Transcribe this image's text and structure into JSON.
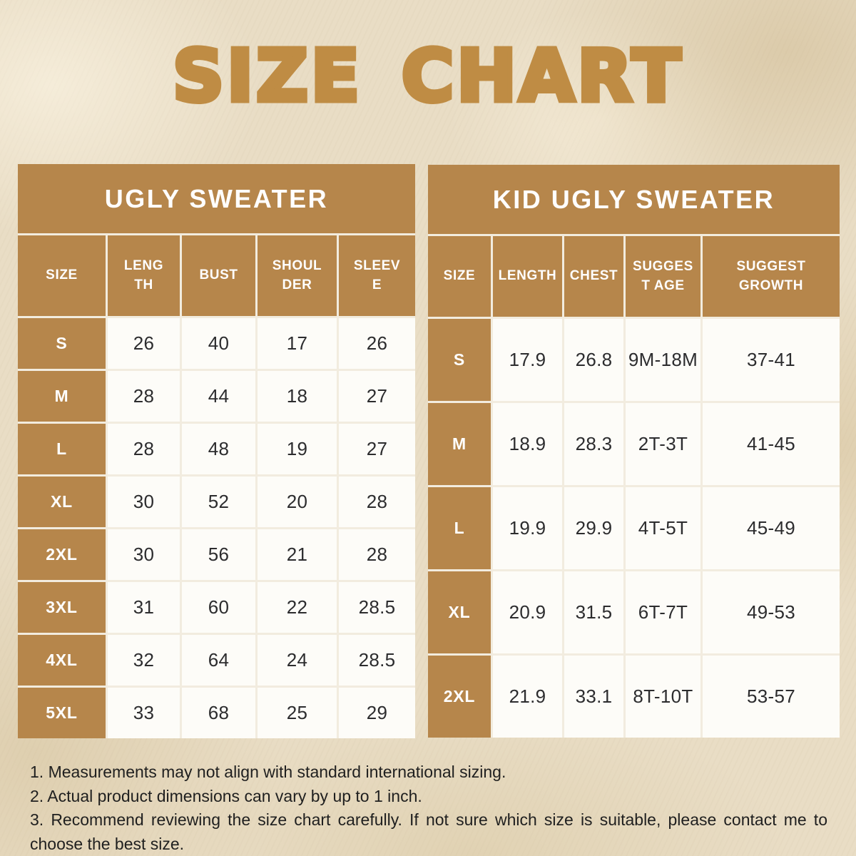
{
  "page_title": "SIZE CHART",
  "colors": {
    "background": "#e9ddc5",
    "table_tan": "#b6864b",
    "title_gold": "#bf8c44",
    "cell_white": "#fdfcf8",
    "grid_line": "#f2ecdf",
    "text_dark": "#2c2c2e"
  },
  "chart_data": [
    {
      "type": "table",
      "title": "UGLY SWEATER",
      "columns": [
        "SIZE",
        "LENG\nTH",
        "BUST",
        "SHOUL\nDER",
        "SLEEV\nE"
      ],
      "rows": [
        [
          "S",
          "26",
          "40",
          "17",
          "26"
        ],
        [
          "M",
          "28",
          "44",
          "18",
          "27"
        ],
        [
          "L",
          "28",
          "48",
          "19",
          "27"
        ],
        [
          "XL",
          "30",
          "52",
          "20",
          "28"
        ],
        [
          "2XL",
          "30",
          "56",
          "21",
          "28"
        ],
        [
          "3XL",
          "31",
          "60",
          "22",
          "28.5"
        ],
        [
          "4XL",
          "32",
          "64",
          "24",
          "28.5"
        ],
        [
          "5XL",
          "33",
          "68",
          "25",
          "29"
        ]
      ]
    },
    {
      "type": "table",
      "title": "KID UGLY SWEATER",
      "columns": [
        "SIZE",
        "LENGTH",
        "CHEST",
        "SUGGES\nT AGE",
        "SUGGEST\nGROWTH"
      ],
      "rows": [
        [
          "S",
          "17.9",
          "26.8",
          "9M-18M",
          "37-41"
        ],
        [
          "M",
          "18.9",
          "28.3",
          "2T-3T",
          "41-45"
        ],
        [
          "L",
          "19.9",
          "29.9",
          "4T-5T",
          "45-49"
        ],
        [
          "XL",
          "20.9",
          "31.5",
          "6T-7T",
          "49-53"
        ],
        [
          "2XL",
          "21.9",
          "33.1",
          "8T-10T",
          "53-57"
        ]
      ]
    }
  ],
  "notes": [
    "1. Measurements may not align with standard international sizing.",
    "2. Actual product dimensions can vary by up to 1 inch.",
    "3. Recommend reviewing the size chart carefully. If not sure which size is suitable, please contact me to choose the best size."
  ]
}
